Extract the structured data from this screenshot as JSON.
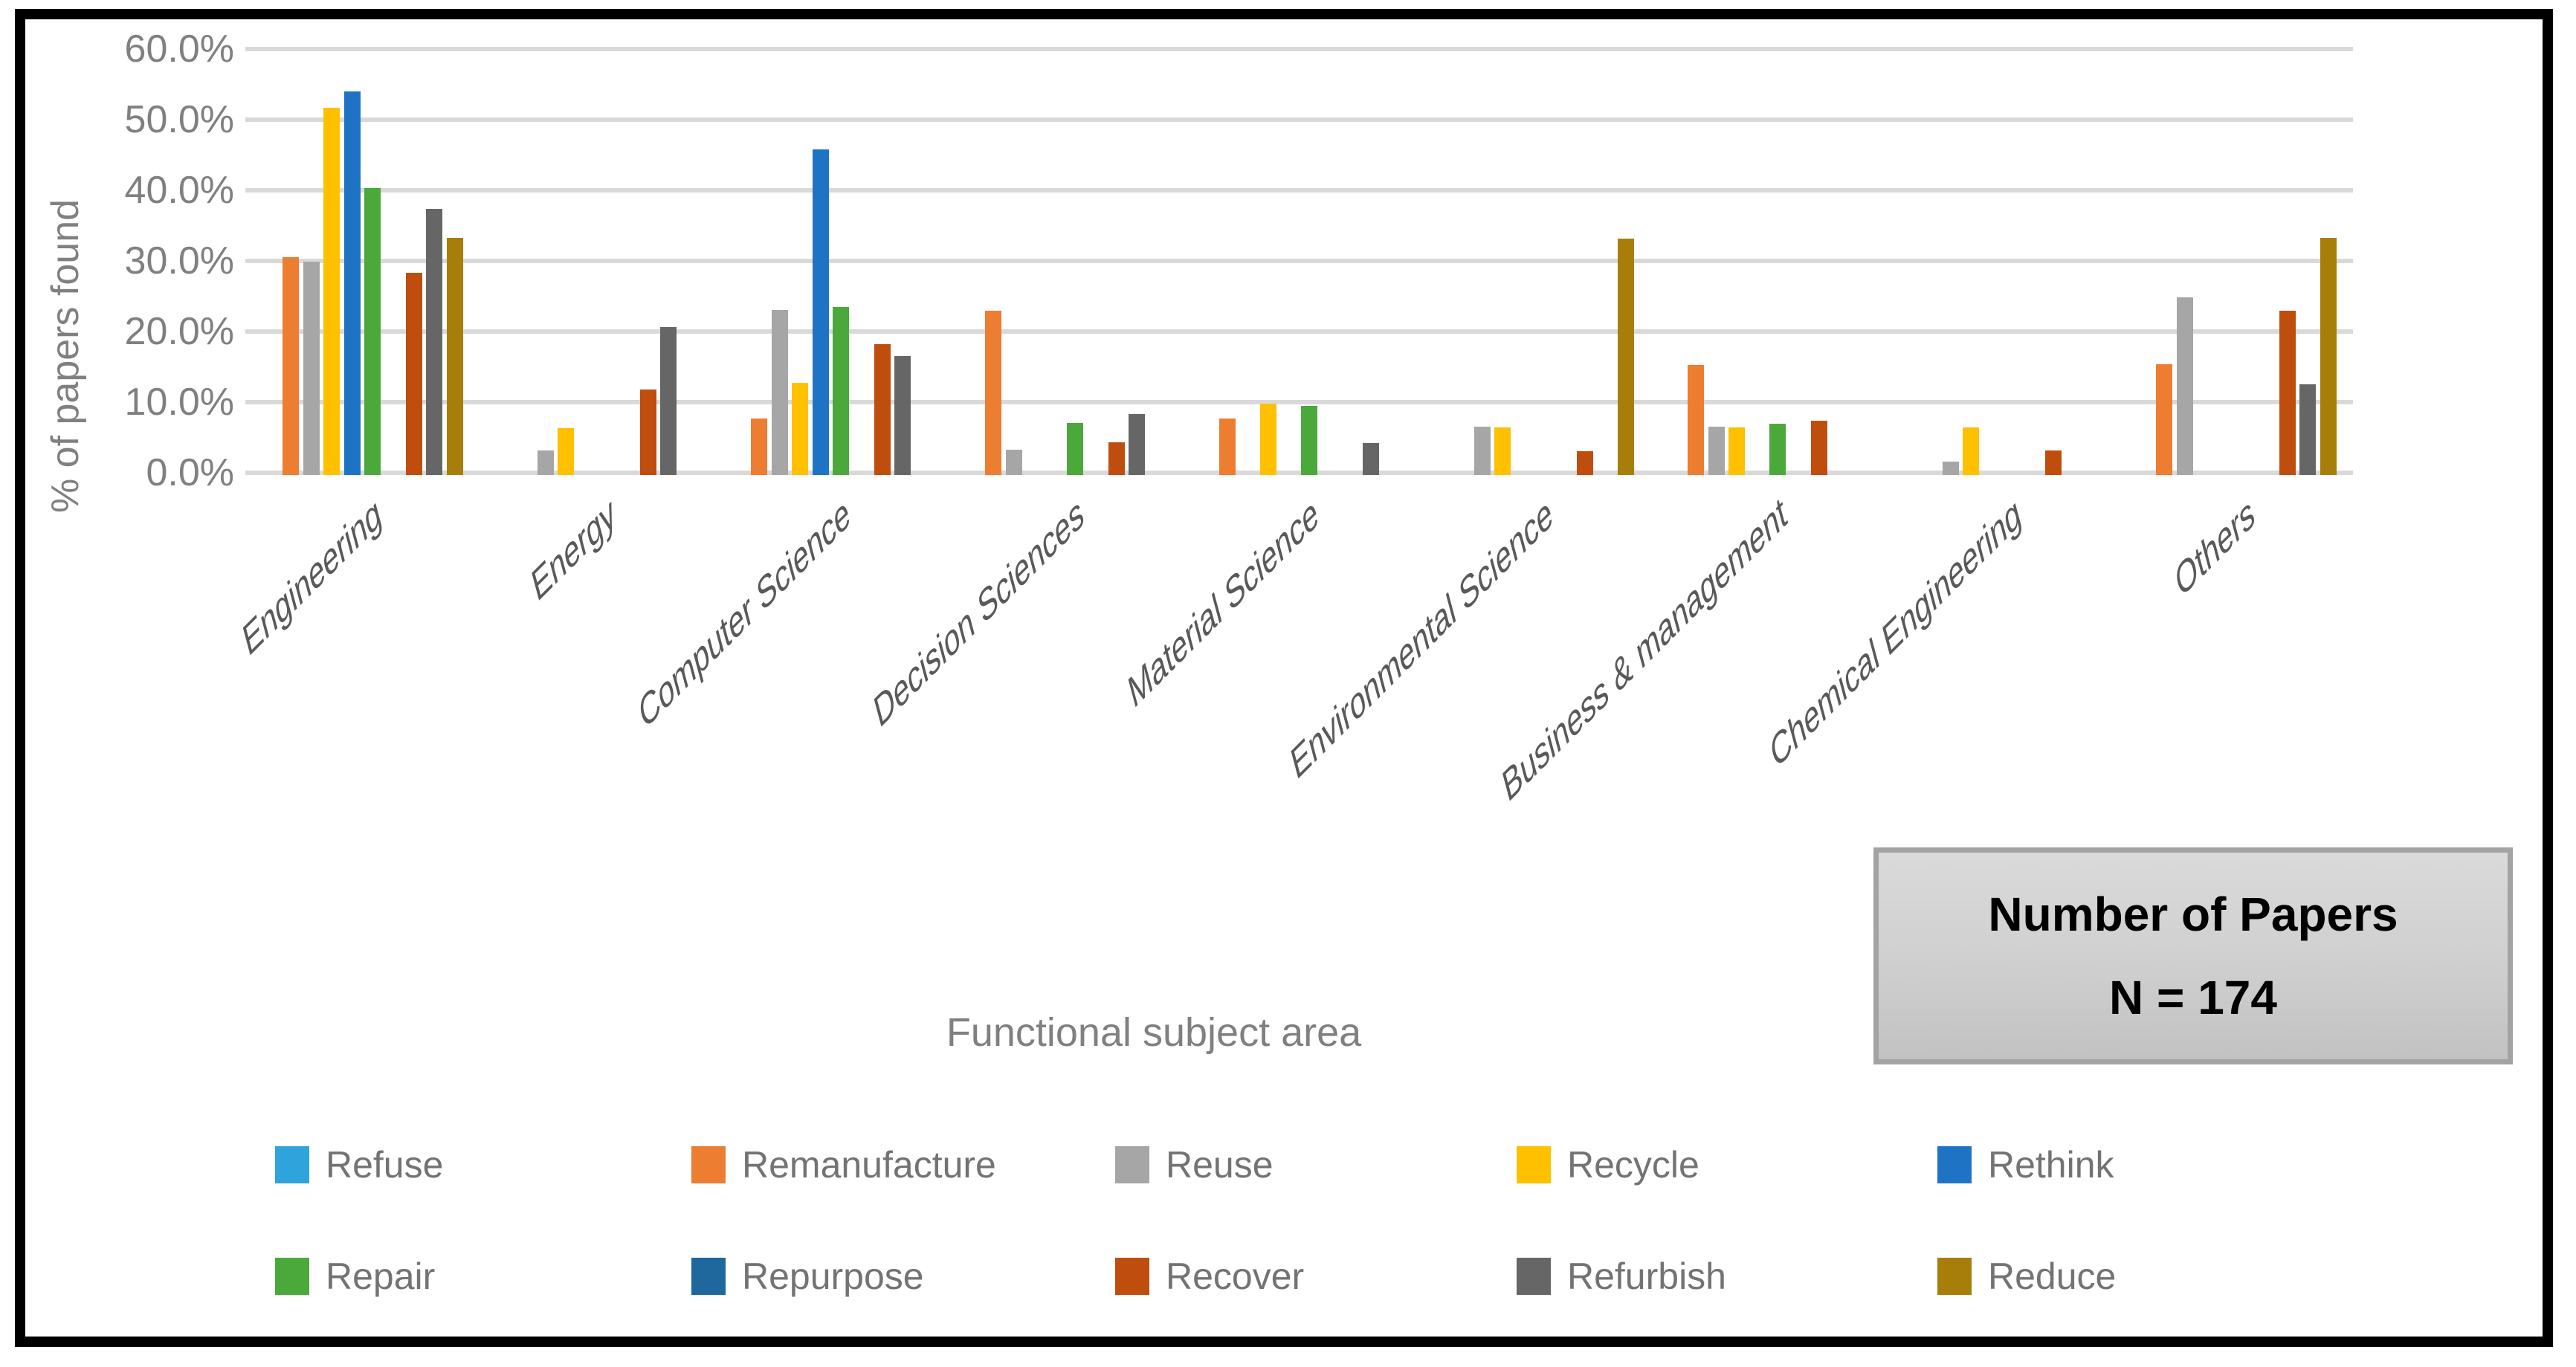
{
  "chart_data": {
    "type": "bar",
    "title": "",
    "xlabel": "Functional subject area",
    "ylabel": "% of papers found",
    "ylim": [
      0,
      60
    ],
    "ytick_step": 10,
    "ytick_labels": [
      "60.0%",
      "50.0%",
      "40.0%",
      "30.0%",
      "20.0%",
      "10.0%",
      "0.0%"
    ],
    "grid": true,
    "legend_position": "bottom",
    "categories": [
      "Engineering",
      "Energy",
      "Computer Science",
      "Decision Sciences",
      "Material Science",
      "Environmental Science",
      "Business & management",
      "Chemical Engineering",
      "Others"
    ],
    "series": [
      {
        "name": "Refuse",
        "color": "#2EA3DC",
        "values": [
          0,
          0,
          0,
          0,
          0,
          0,
          0,
          0,
          0
        ]
      },
      {
        "name": "Remanufacture",
        "color": "#ED7D31",
        "values": [
          30.5,
          0,
          7.7,
          23.0,
          7.7,
          0,
          15.3,
          0,
          15.4
        ]
      },
      {
        "name": "Reuse",
        "color": "#A6A6A6",
        "values": [
          29.9,
          3.2,
          23.1,
          3.3,
          0,
          6.5,
          6.5,
          1.6,
          24.8
        ]
      },
      {
        "name": "Recycle",
        "color": "#FFC000",
        "values": [
          51.7,
          6.3,
          12.7,
          0,
          9.8,
          6.4,
          6.4,
          6.4,
          0
        ]
      },
      {
        "name": "Rethink",
        "color": "#1F73C5",
        "values": [
          54.0,
          0,
          45.8,
          0,
          0,
          0,
          0,
          0,
          0
        ]
      },
      {
        "name": "Repair",
        "color": "#4BA93C",
        "values": [
          40.3,
          0,
          23.5,
          7.1,
          9.5,
          0,
          7.0,
          0,
          0
        ]
      },
      {
        "name": "Repurpose",
        "color": "#1F689E",
        "values": [
          0,
          0,
          0,
          0,
          0,
          0,
          0,
          0,
          0
        ]
      },
      {
        "name": "Recover",
        "color": "#BF4E0E",
        "values": [
          28.3,
          11.8,
          18.2,
          4.3,
          0,
          3.1,
          7.4,
          3.2,
          22.9
        ]
      },
      {
        "name": "Refurbish",
        "color": "#666666",
        "values": [
          37.4,
          20.6,
          16.5,
          8.3,
          4.2,
          0,
          0,
          0,
          12.5
        ]
      },
      {
        "name": "Reduce",
        "color": "#A87E0B",
        "values": [
          33.3,
          0,
          0,
          0,
          0,
          33.2,
          0,
          0,
          33.3
        ]
      }
    ],
    "legend_rows": [
      [
        "Refuse",
        "Remanufacture",
        "Reuse",
        "Recycle",
        "Rethink"
      ],
      [
        "Repair",
        "Repurpose",
        "Recover",
        "Refurbish",
        "Reduce"
      ]
    ]
  },
  "annotation_box": {
    "line1": "Number of Papers",
    "line2": "N = 174"
  },
  "colors": {
    "gridline": "#D9D9D9",
    "axis_text": "#808080",
    "category_text": "#595959",
    "legend_text": "#737373",
    "frame": "#000000"
  }
}
